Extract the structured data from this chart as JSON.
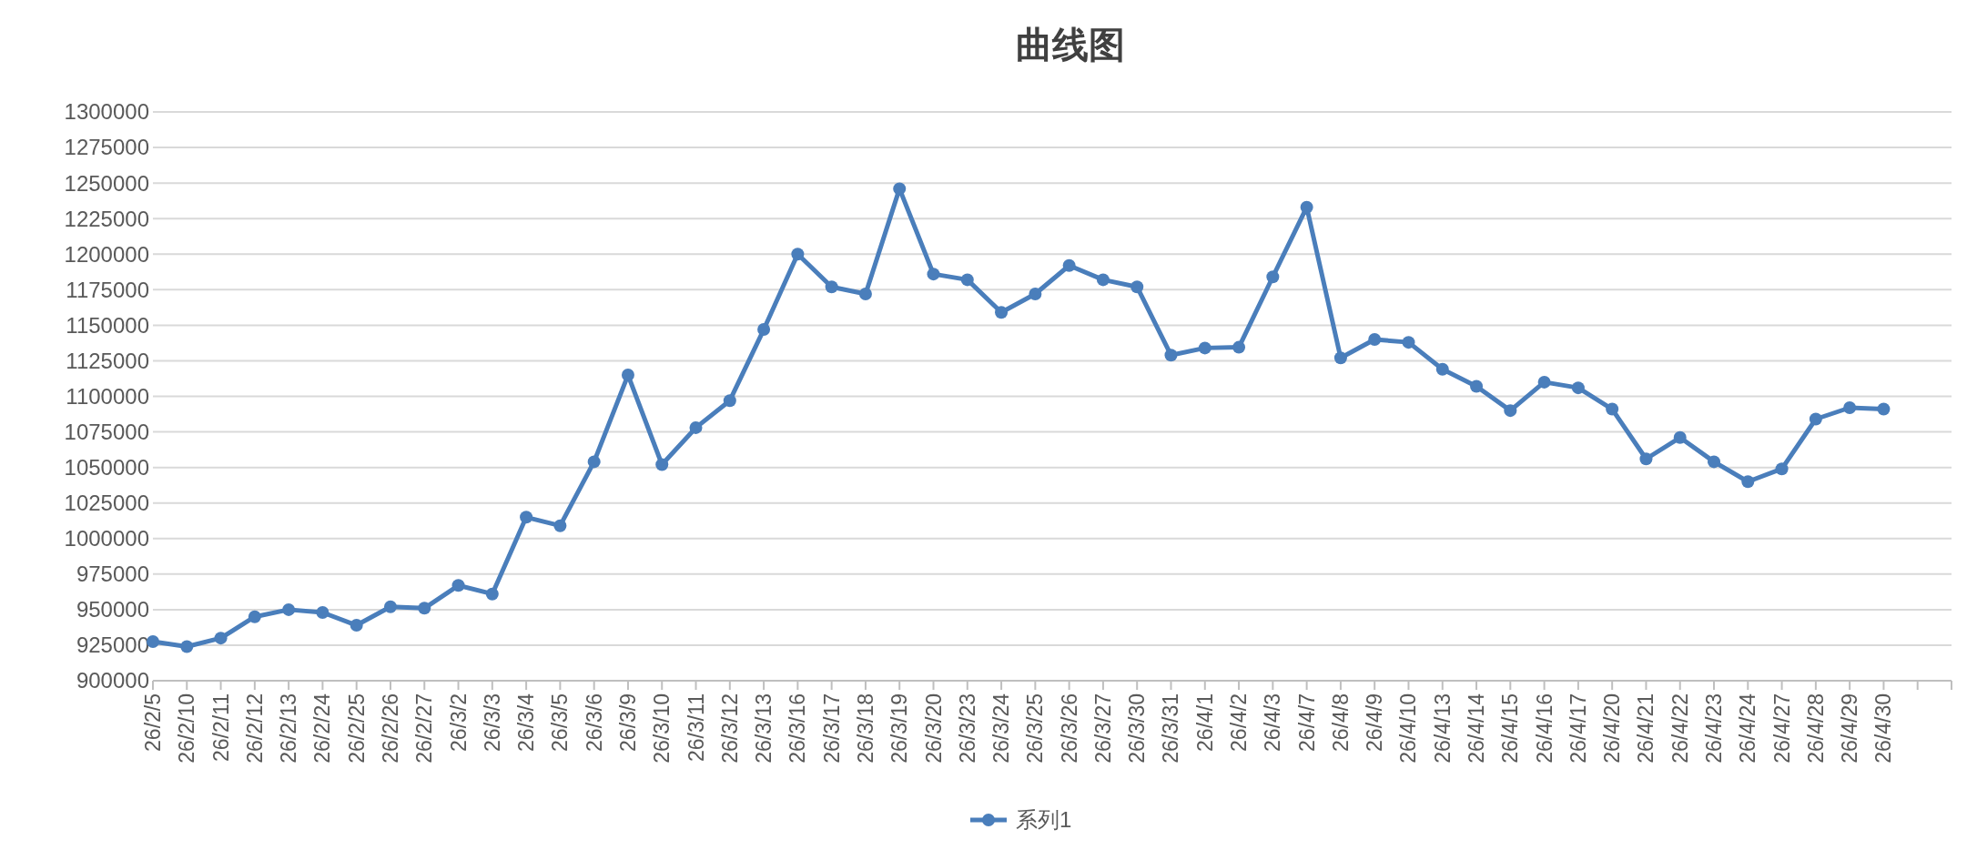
{
  "chart_data": {
    "type": "line",
    "title": "曲线图",
    "categories": [
      "26/2/5",
      "26/2/10",
      "26/2/11",
      "26/2/12",
      "26/2/13",
      "26/2/24",
      "26/2/25",
      "26/2/26",
      "26/2/27",
      "26/3/2",
      "26/3/3",
      "26/3/4",
      "26/3/5",
      "26/3/6",
      "26/3/9",
      "26/3/10",
      "26/3/11",
      "26/3/12",
      "26/3/13",
      "26/3/16",
      "26/3/17",
      "26/3/18",
      "26/3/19",
      "26/3/20",
      "26/3/23",
      "26/3/24",
      "26/3/25",
      "26/3/26",
      "26/3/27",
      "26/3/30",
      "26/3/31",
      "26/4/1",
      "26/4/2",
      "26/4/3",
      "26/4/7",
      "26/4/8",
      "26/4/9",
      "26/4/10",
      "26/4/13",
      "26/4/14",
      "26/4/15",
      "26/4/16",
      "26/4/17",
      "26/4/20",
      "26/4/21",
      "26/4/22",
      "26/4/23",
      "26/4/24",
      "26/4/27",
      "26/4/28",
      "26/4/29",
      "26/4/30",
      null,
      null
    ],
    "series": [
      {
        "name": "系列1",
        "color": "#4a7ebb",
        "values": [
          927500,
          924000,
          930000,
          945000,
          950000,
          948000,
          939000,
          952000,
          951000,
          967000,
          961000,
          1015000,
          1009000,
          1054000,
          1115000,
          1052000,
          1078000,
          1097000,
          1147000,
          1200000,
          1177000,
          1172000,
          1246000,
          1186000,
          1182000,
          1159000,
          1172000,
          1192000,
          1182000,
          1177000,
          1129000,
          1134000,
          1134500,
          1184000,
          1233000,
          1127000,
          1140000,
          1138000,
          1119000,
          1107000,
          1090000,
          1110000,
          1106000,
          1091000,
          1056000,
          1071000,
          1054000,
          1040000,
          1049000,
          1084000,
          1092000,
          1091000,
          null,
          null
        ]
      }
    ],
    "ylim": [
      900000,
      1300000
    ],
    "yticks": [
      900000,
      925000,
      950000,
      975000,
      1000000,
      1025000,
      1050000,
      1075000,
      1100000,
      1125000,
      1150000,
      1175000,
      1200000,
      1225000,
      1250000,
      1275000,
      1300000
    ],
    "grid": "y",
    "legend": "bottom",
    "marker": "circle",
    "line_style": "solid"
  }
}
